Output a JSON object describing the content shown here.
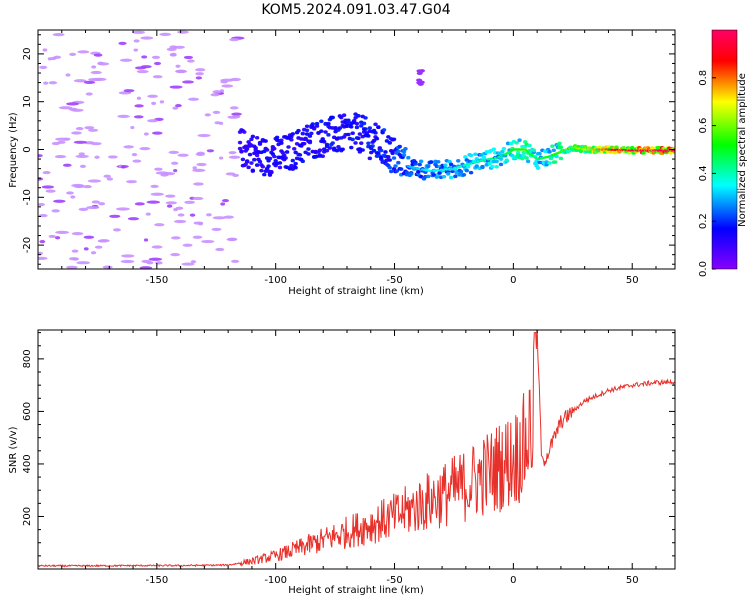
{
  "figure": {
    "title": "KOM5.2024.091.03.47.G04"
  },
  "chart_data": [
    {
      "type": "heatmap",
      "xlabel": "Height of straight line (km)",
      "ylabel": "Frequency (Hz)",
      "xlim": [
        -200,
        68
      ],
      "ylim": [
        -25,
        25
      ],
      "x_ticks": [
        -150,
        -100,
        -50,
        0,
        50
      ],
      "x_tick_labels": [
        "-150",
        "-100",
        "-50",
        "0",
        "50"
      ],
      "y_ticks": [
        -20,
        -10,
        0,
        10,
        20
      ],
      "y_tick_labels": [
        "-20",
        "-10",
        "0",
        "10",
        "20"
      ],
      "colorbar": {
        "label": "Normalized spectral amplitude",
        "range": [
          0,
          1
        ],
        "ticks": [
          0.0,
          0.2,
          0.4,
          0.6,
          0.8
        ],
        "tick_labels": [
          "0.0",
          "0.2",
          "0.4",
          "0.6",
          "0.8"
        ],
        "colors": [
          "#8800ff",
          "#0000ff",
          "#00ffff",
          "#00ff00",
          "#ffff00",
          "#ff0000",
          "#ff0066"
        ]
      },
      "ridge": {
        "x": [
          -115,
          -105,
          -95,
          -85,
          -75,
          -65,
          -55,
          -45,
          -35,
          -25,
          -15,
          -5,
          0,
          5,
          10,
          15,
          20,
          25,
          30,
          40,
          50,
          68
        ],
        "y": [
          0.5,
          -1.5,
          -1.0,
          2.0,
          3.0,
          3.5,
          0.5,
          -3.5,
          -4.5,
          -4.0,
          -2.5,
          -1.5,
          0.0,
          0.0,
          -2.0,
          -1.5,
          -0.5,
          0.5,
          0.0,
          0.0,
          -0.2,
          -0.2
        ],
        "amplitude": [
          0.15,
          0.2,
          0.2,
          0.22,
          0.22,
          0.22,
          0.25,
          0.3,
          0.35,
          0.38,
          0.4,
          0.45,
          0.5,
          0.55,
          0.45,
          0.5,
          0.55,
          0.6,
          0.7,
          0.85,
          0.95,
          1.0
        ]
      },
      "noise_region": {
        "x_range": [
          -200,
          -115
        ],
        "amplitude": 0.05
      }
    },
    {
      "type": "line",
      "xlabel": "Height of straight line (km)",
      "ylabel": "SNR (v/v)",
      "xlim": [
        -200,
        68
      ],
      "ylim": [
        0,
        910
      ],
      "x_ticks": [
        -150,
        -100,
        -50,
        0,
        50
      ],
      "x_tick_labels": [
        "-150",
        "-100",
        "-50",
        "0",
        "50"
      ],
      "y_ticks": [
        200,
        400,
        600,
        800
      ],
      "y_tick_labels": [
        "200",
        "400",
        "600",
        "800"
      ],
      "color": "#e8302a",
      "series": [
        {
          "x": [
            -200,
            -180,
            -160,
            -140,
            -120,
            -110,
            -100,
            -90,
            -80,
            -70,
            -60,
            -50,
            -40,
            -30,
            -20,
            -10,
            0,
            5,
            9,
            10,
            12,
            15,
            20,
            25,
            30,
            40,
            50,
            60,
            68
          ],
          "values": [
            12,
            12,
            13,
            13,
            15,
            30,
            50,
            80,
            110,
            140,
            170,
            200,
            240,
            280,
            320,
            370,
            420,
            470,
            600,
            900,
            400,
            450,
            560,
            600,
            640,
            680,
            700,
            710,
            712
          ]
        }
      ]
    }
  ]
}
